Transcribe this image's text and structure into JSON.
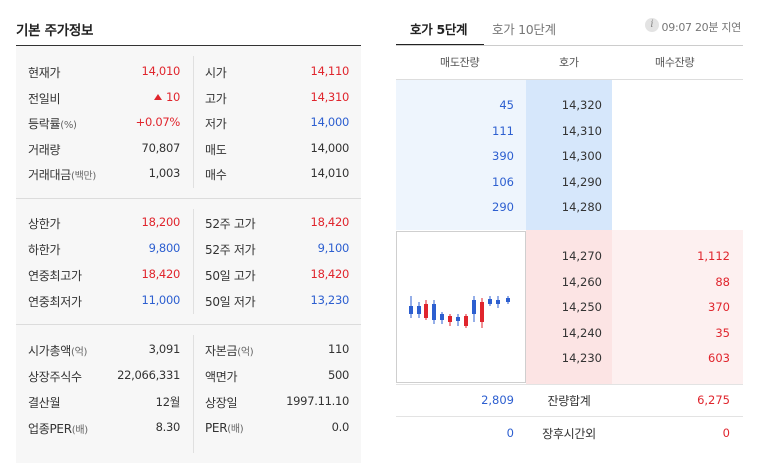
{
  "left": {
    "title": "기본 주가정보",
    "section1": [
      {
        "k1": "현재가",
        "u1": "",
        "v1": "14,010",
        "c1": "red",
        "k2": "시가",
        "u2": "",
        "v2": "14,110",
        "c2": "red"
      },
      {
        "k1": "전일비",
        "u1": "",
        "v1": "10",
        "c1": "red",
        "arrow": "up-triangle-icon",
        "k2": "고가",
        "u2": "",
        "v2": "14,310",
        "c2": "red"
      },
      {
        "k1": "등락률",
        "u1": "(%)",
        "v1": "+0.07%",
        "c1": "red",
        "k2": "저가",
        "u2": "",
        "v2": "14,000",
        "c2": "blue"
      },
      {
        "k1": "거래량",
        "u1": "",
        "v1": "70,807",
        "c1": "",
        "k2": "매도",
        "u2": "",
        "v2": "14,000",
        "c2": ""
      },
      {
        "k1": "거래대금",
        "u1": "(백만)",
        "v1": "1,003",
        "c1": "",
        "k2": "매수",
        "u2": "",
        "v2": "14,010",
        "c2": ""
      }
    ],
    "section2": [
      {
        "k1": "상한가",
        "u1": "",
        "v1": "18,200",
        "c1": "red",
        "k2": "52주 고가",
        "u2": "",
        "v2": "18,420",
        "c2": "red"
      },
      {
        "k1": "하한가",
        "u1": "",
        "v1": "9,800",
        "c1": "blue",
        "k2": "52주 저가",
        "u2": "",
        "v2": "9,100",
        "c2": "blue"
      },
      {
        "k1": "연중최고가",
        "u1": "",
        "v1": "18,420",
        "c1": "red",
        "k2": "50일 고가",
        "u2": "",
        "v2": "18,420",
        "c2": "red"
      },
      {
        "k1": "연중최저가",
        "u1": "",
        "v1": "11,000",
        "c1": "blue",
        "k2": "50일 저가",
        "u2": "",
        "v2": "13,230",
        "c2": "blue"
      }
    ],
    "section3": [
      {
        "k1": "시가총액",
        "u1": "(억)",
        "v1": "3,091",
        "c1": "",
        "k2": "자본금",
        "u2": "(억)",
        "v2": "110",
        "c2": ""
      },
      {
        "k1": "상장주식수",
        "u1": "",
        "v1": "22,066,331",
        "c1": "",
        "k2": "액면가",
        "u2": "",
        "v2": "500",
        "c2": ""
      },
      {
        "k1": "결산월",
        "u1": "",
        "v1": "12월",
        "c1": "",
        "k2": "상장일",
        "u2": "",
        "v2": "1997.11.10",
        "c2": ""
      },
      {
        "k1": "업종PER",
        "u1": "(배)",
        "v1": "8.30",
        "c1": "",
        "k2": "PER",
        "u2": "(배)",
        "v2": "0.0",
        "c2": ""
      }
    ]
  },
  "right": {
    "tabs": [
      "호가 5단계",
      "호가 10단계"
    ],
    "active_tab": 0,
    "info_icon_glyph": "i",
    "delay_text": "09:07 20분 지연",
    "headers": [
      "매도잔량",
      "호가",
      "매수잔량"
    ],
    "asks": [
      {
        "qty": "45",
        "price": "14,320"
      },
      {
        "qty": "111",
        "price": "14,310"
      },
      {
        "qty": "390",
        "price": "14,300"
      },
      {
        "qty": "106",
        "price": "14,290"
      },
      {
        "qty": "290",
        "price": "14,280"
      }
    ],
    "bids": [
      {
        "price": "14,270",
        "qty": "1,112"
      },
      {
        "price": "14,260",
        "qty": "88"
      },
      {
        "price": "14,250",
        "qty": "370"
      },
      {
        "price": "14,240",
        "qty": "35"
      },
      {
        "price": "14,230",
        "qty": "603"
      }
    ],
    "summary": [
      {
        "ask": "2,809",
        "label": "잔량합계",
        "bid": "6,275"
      },
      {
        "ask": "0",
        "label": "장후시간외",
        "bid": "0"
      }
    ],
    "colors": {
      "up": "#e0252d",
      "down": "#2d5fd0"
    }
  }
}
